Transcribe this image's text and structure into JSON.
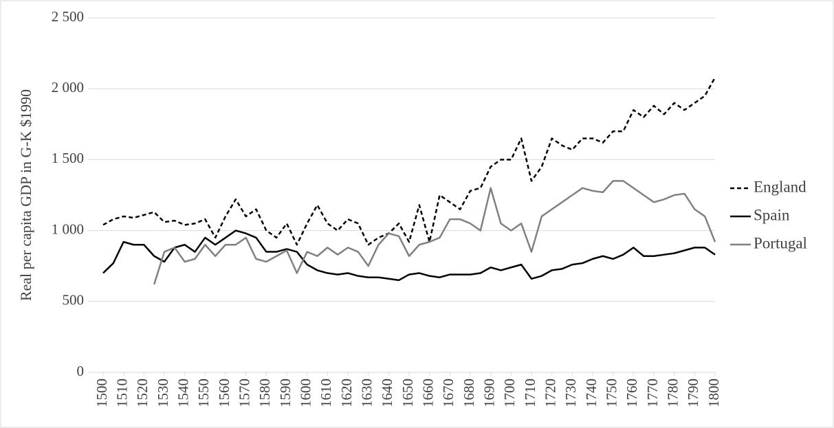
{
  "chart_data": {
    "type": "line",
    "y_label": "Real per capita GDP in G-K $1990",
    "x": [
      1500,
      1505,
      1510,
      1515,
      1520,
      1525,
      1530,
      1535,
      1540,
      1545,
      1550,
      1555,
      1560,
      1565,
      1570,
      1575,
      1580,
      1585,
      1590,
      1595,
      1600,
      1605,
      1610,
      1615,
      1620,
      1625,
      1630,
      1635,
      1640,
      1645,
      1650,
      1655,
      1660,
      1665,
      1670,
      1675,
      1680,
      1685,
      1690,
      1695,
      1700,
      1705,
      1710,
      1715,
      1720,
      1725,
      1730,
      1735,
      1740,
      1745,
      1750,
      1755,
      1760,
      1765,
      1770,
      1775,
      1780,
      1785,
      1790,
      1795,
      1800
    ],
    "series": [
      {
        "name": "England",
        "color": "#000000",
        "dash": true,
        "values": [
          1040,
          1080,
          1100,
          1090,
          1110,
          1130,
          1060,
          1070,
          1040,
          1050,
          1080,
          950,
          1100,
          1220,
          1100,
          1150,
          1000,
          950,
          1050,
          900,
          1050,
          1180,
          1050,
          1000,
          1080,
          1050,
          900,
          950,
          980,
          1050,
          920,
          1180,
          920,
          1250,
          1200,
          1150,
          1280,
          1300,
          1450,
          1500,
          1500,
          1650,
          1350,
          1450,
          1650,
          1600,
          1570,
          1650,
          1650,
          1620,
          1700,
          1700,
          1850,
          1800,
          1880,
          1820,
          1900,
          1850,
          1900,
          1950,
          2080
        ]
      },
      {
        "name": "Spain",
        "color": "#000000",
        "dash": false,
        "values": [
          700,
          770,
          920,
          900,
          900,
          820,
          780,
          880,
          900,
          850,
          950,
          900,
          950,
          1000,
          980,
          950,
          850,
          850,
          870,
          850,
          760,
          720,
          700,
          690,
          700,
          680,
          670,
          670,
          660,
          650,
          690,
          700,
          680,
          670,
          690,
          690,
          690,
          700,
          740,
          720,
          740,
          760,
          660,
          680,
          720,
          730,
          760,
          770,
          800,
          820,
          800,
          830,
          880,
          820,
          820,
          830,
          840,
          860,
          880,
          880,
          830
        ]
      },
      {
        "name": "Portugal",
        "color": "#808080",
        "dash": false,
        "values": [
          null,
          null,
          null,
          null,
          null,
          620,
          850,
          880,
          780,
          800,
          900,
          820,
          900,
          900,
          950,
          800,
          780,
          820,
          860,
          700,
          850,
          820,
          880,
          830,
          880,
          850,
          750,
          900,
          980,
          960,
          820,
          900,
          920,
          950,
          1080,
          1080,
          1050,
          1000,
          1300,
          1050,
          1000,
          1050,
          850,
          1100,
          1150,
          1200,
          1250,
          1300,
          1280,
          1270,
          1350,
          1350,
          1300,
          1250,
          1200,
          1220,
          1250,
          1260,
          1150,
          1100,
          920
        ]
      }
    ],
    "xlim": [
      1500,
      1800
    ],
    "xticks": [
      1500,
      1510,
      1520,
      1530,
      1540,
      1550,
      1560,
      1570,
      1580,
      1590,
      1600,
      1610,
      1620,
      1630,
      1640,
      1650,
      1660,
      1670,
      1680,
      1690,
      1700,
      1710,
      1720,
      1730,
      1740,
      1750,
      1760,
      1770,
      1780,
      1790,
      1800
    ],
    "ylim": [
      0,
      2500
    ],
    "yticks": [
      0,
      {
        "value": 500,
        "label": "500"
      },
      {
        "value": 1000,
        "label": "1 000"
      },
      {
        "value": 1500,
        "label": "1 500"
      },
      {
        "value": 2000,
        "label": "2 000"
      },
      {
        "value": 2500,
        "label": "2 500"
      }
    ],
    "grid": true,
    "legend": "right"
  }
}
